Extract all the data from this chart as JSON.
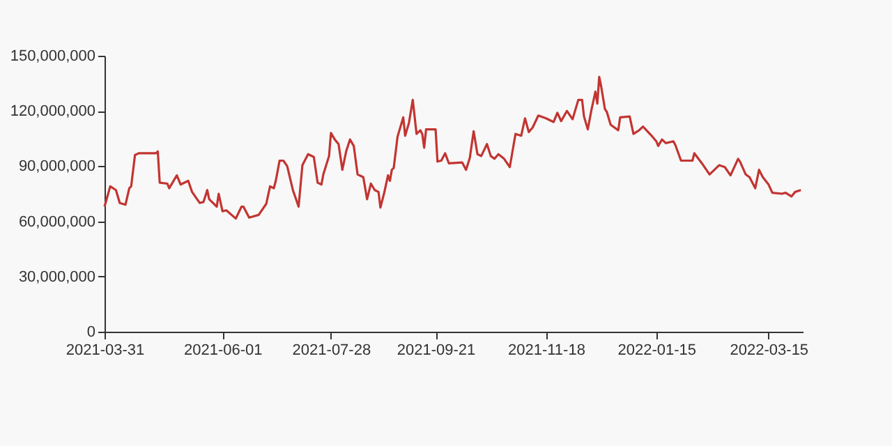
{
  "chart_data": {
    "type": "line",
    "x": [
      "2021-03-31",
      "2021-04-03",
      "2021-04-06",
      "2021-04-08",
      "2021-04-11",
      "2021-04-13",
      "2021-04-14",
      "2021-04-16",
      "2021-04-18",
      "2021-04-27",
      "2021-04-28",
      "2021-04-29",
      "2021-05-03",
      "2021-05-04",
      "2021-05-08",
      "2021-05-10",
      "2021-05-14",
      "2021-05-16",
      "2021-05-20",
      "2021-05-22",
      "2021-05-24",
      "2021-05-25",
      "2021-05-29",
      "2021-05-30",
      "2021-06-01",
      "2021-06-03",
      "2021-06-08",
      "2021-06-11",
      "2021-06-12",
      "2021-06-15",
      "2021-06-20",
      "2021-06-24",
      "2021-06-26",
      "2021-06-28",
      "2021-06-29",
      "2021-07-01",
      "2021-07-03",
      "2021-07-05",
      "2021-07-08",
      "2021-07-11",
      "2021-07-13",
      "2021-07-16",
      "2021-07-19",
      "2021-07-21",
      "2021-07-23",
      "2021-07-24",
      "2021-07-27",
      "2021-07-28",
      "2021-07-30",
      "2021-08-01",
      "2021-08-03",
      "2021-08-05",
      "2021-08-07",
      "2021-08-09",
      "2021-08-11",
      "2021-08-14",
      "2021-08-16",
      "2021-08-18",
      "2021-08-20",
      "2021-08-22",
      "2021-08-23",
      "2021-08-25",
      "2021-08-27",
      "2021-08-28",
      "2021-08-29",
      "2021-08-30",
      "2021-09-01",
      "2021-09-04",
      "2021-09-05",
      "2021-09-07",
      "2021-09-09",
      "2021-09-11",
      "2021-09-13",
      "2021-09-14",
      "2021-09-15",
      "2021-09-16",
      "2021-09-21",
      "2021-09-22",
      "2021-09-24",
      "2021-09-26",
      "2021-09-28",
      "2021-10-05",
      "2021-10-07",
      "2021-10-09",
      "2021-10-11",
      "2021-10-13",
      "2021-10-15",
      "2021-10-18",
      "2021-10-20",
      "2021-10-22",
      "2021-10-24",
      "2021-10-27",
      "2021-10-30",
      "2021-11-02",
      "2021-11-05",
      "2021-11-07",
      "2021-11-09",
      "2021-11-11",
      "2021-11-14",
      "2021-11-18",
      "2021-11-22",
      "2021-11-24",
      "2021-11-26",
      "2021-11-29",
      "2021-12-02",
      "2021-12-05",
      "2021-12-07",
      "2021-12-08",
      "2021-12-10",
      "2021-12-12",
      "2021-12-14",
      "2021-12-15",
      "2021-12-16",
      "2021-12-17",
      "2021-12-19",
      "2021-12-20",
      "2021-12-22",
      "2021-12-26",
      "2021-12-27",
      "2022-01-01",
      "2022-01-03",
      "2022-01-06",
      "2022-01-08",
      "2022-01-13",
      "2022-01-15",
      "2022-01-16",
      "2022-01-18",
      "2022-01-20",
      "2022-01-24",
      "2022-01-25",
      "2022-01-28",
      "2022-02-03",
      "2022-02-04",
      "2022-02-08",
      "2022-02-12",
      "2022-02-17",
      "2022-02-20",
      "2022-02-23",
      "2022-02-27",
      "2022-02-28",
      "2022-03-03",
      "2022-03-05",
      "2022-03-08",
      "2022-03-10",
      "2022-03-12",
      "2022-03-15",
      "2022-03-17",
      "2022-03-22",
      "2022-03-24",
      "2022-03-27",
      "2022-03-29",
      "2022-04-01"
    ],
    "series": [
      {
        "color": "#c23531",
        "values": [
          68000000,
          79000000,
          77000000,
          70000000,
          69000000,
          78000000,
          79000000,
          96000000,
          97000000,
          97000000,
          98000000,
          81000000,
          80500000,
          78000000,
          85000000,
          80000000,
          82000000,
          76000000,
          70000000,
          70500000,
          77000000,
          72000000,
          68000000,
          75000000,
          65500000,
          66000000,
          61500000,
          68000000,
          68000000,
          62000000,
          63500000,
          69500000,
          79000000,
          78000000,
          82000000,
          93000000,
          93000000,
          90000000,
          77000000,
          68000000,
          90500000,
          96500000,
          95000000,
          81000000,
          80000000,
          85500000,
          95500000,
          108000000,
          104500000,
          102000000,
          88000000,
          98000000,
          104500000,
          101000000,
          85500000,
          84000000,
          72000000,
          80500000,
          77000000,
          76000000,
          67500000,
          75500000,
          85000000,
          82000000,
          88000000,
          89000000,
          106000000,
          116500000,
          106500000,
          113500000,
          126000000,
          107500000,
          109500000,
          107500000,
          100000000,
          110000000,
          110000000,
          92500000,
          93000000,
          97000000,
          91500000,
          92000000,
          88000000,
          94500000,
          109000000,
          96500000,
          95500000,
          102000000,
          95500000,
          94000000,
          96500000,
          94000000,
          89500000,
          107500000,
          106500000,
          116000000,
          108500000,
          111000000,
          117500000,
          116000000,
          114000000,
          119000000,
          114500000,
          120000000,
          115500000,
          126000000,
          126000000,
          117000000,
          110000000,
          121000000,
          130500000,
          124000000,
          138500000,
          133500000,
          121000000,
          119500000,
          112500000,
          109500000,
          116500000,
          117000000,
          107500000,
          109500000,
          111500000,
          106000000,
          103500000,
          101000000,
          104500000,
          102500000,
          103500000,
          101500000,
          93000000,
          93000000,
          97000000,
          91500000,
          85500000,
          90500000,
          89500000,
          85000000,
          94000000,
          92500000,
          85500000,
          84000000,
          78000000,
          88000000,
          84000000,
          80000000,
          75500000,
          75000000,
          75500000,
          73500000,
          76000000,
          77000000
        ]
      }
    ],
    "xlim": [
      "2021-03-31",
      "2022-04-02"
    ],
    "xticks": [
      "2021-03-31",
      "2021-06-01",
      "2021-07-28",
      "2021-09-21",
      "2021-11-18",
      "2022-01-15",
      "2022-03-15"
    ],
    "ylim": [
      0,
      150000000
    ],
    "yticks": [
      0,
      {
        "value": 30000000,
        "label": "30,000,000"
      },
      {
        "value": 60000000,
        "label": "60,000,000"
      },
      {
        "value": 90000000,
        "label": "90,000,000"
      },
      {
        "value": 120000000,
        "label": "120,000,000"
      },
      {
        "value": 150000000,
        "label": "150,000,000"
      }
    ],
    "grid": false,
    "marker": "none",
    "line_style": "solid"
  }
}
